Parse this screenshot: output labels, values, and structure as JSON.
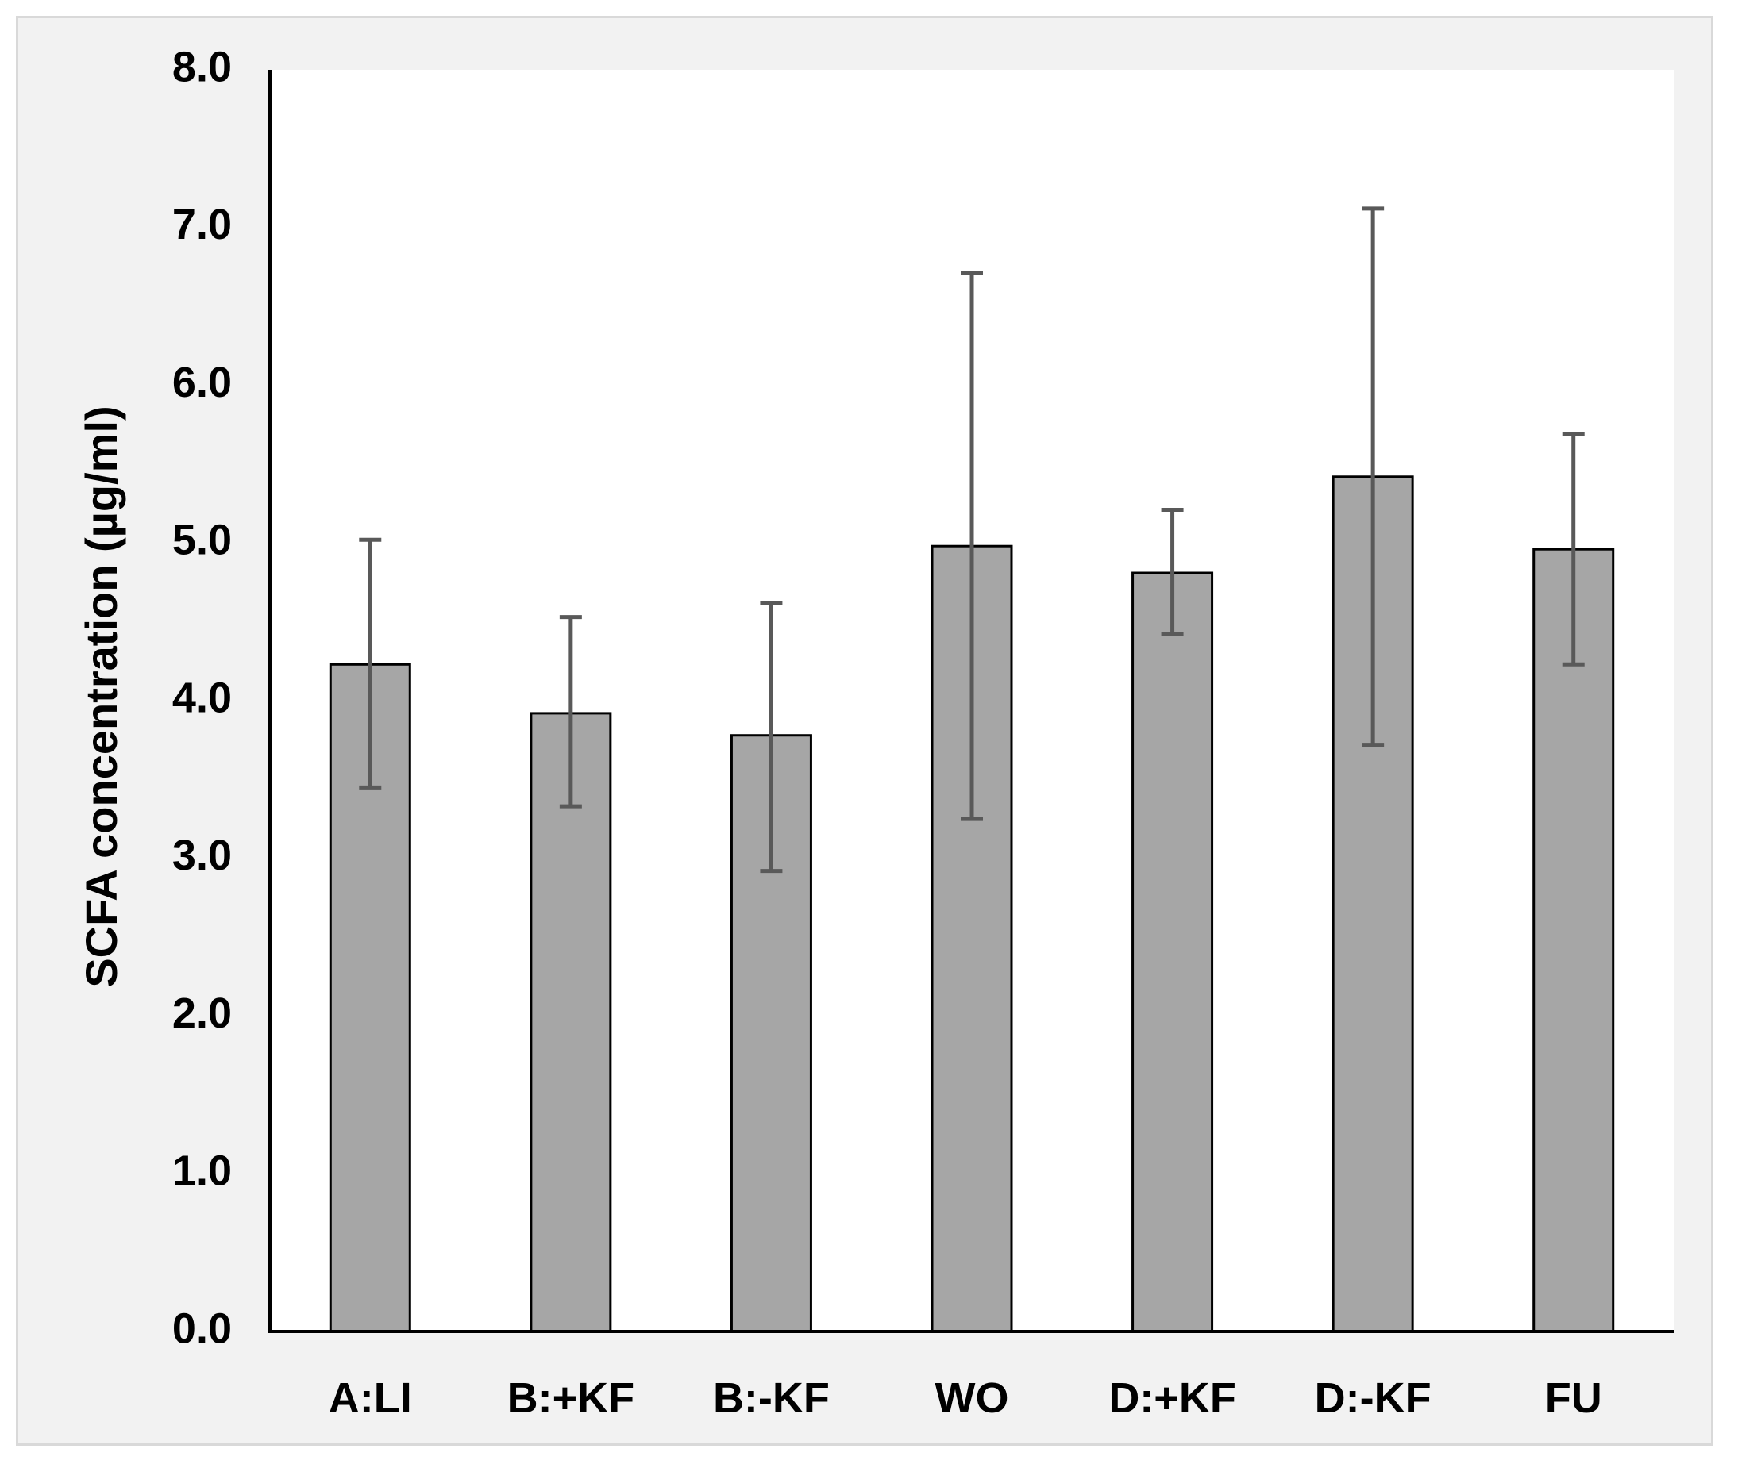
{
  "chart_data": {
    "type": "bar",
    "title": "",
    "xlabel": "",
    "ylabel": "SCFA concentration (µg/ml)",
    "ylim": [
      0,
      8
    ],
    "yticks": [
      "0.0",
      "1.0",
      "2.0",
      "3.0",
      "4.0",
      "5.0",
      "6.0",
      "7.0",
      "8.0"
    ],
    "grid": false,
    "legend": "none",
    "categories": [
      "A:LI",
      "B:+KF",
      "B:-KF",
      "WO",
      "D:+KF",
      "D:-KF",
      "FU"
    ],
    "values": [
      4.23,
      3.92,
      3.78,
      4.98,
      4.81,
      5.42,
      4.96
    ],
    "error_low": [
      3.45,
      3.33,
      2.92,
      3.25,
      4.42,
      3.72,
      4.23
    ],
    "error_high": [
      5.02,
      4.53,
      4.62,
      6.71,
      5.21,
      7.12,
      5.69
    ],
    "colors": {
      "bar_fill": "#a6a6a6",
      "bar_stroke": "#000000",
      "error_bar": "#595959",
      "plot_bg": "#ffffff",
      "frame_bg": "#f2f2f2",
      "axis": "#000000"
    }
  }
}
